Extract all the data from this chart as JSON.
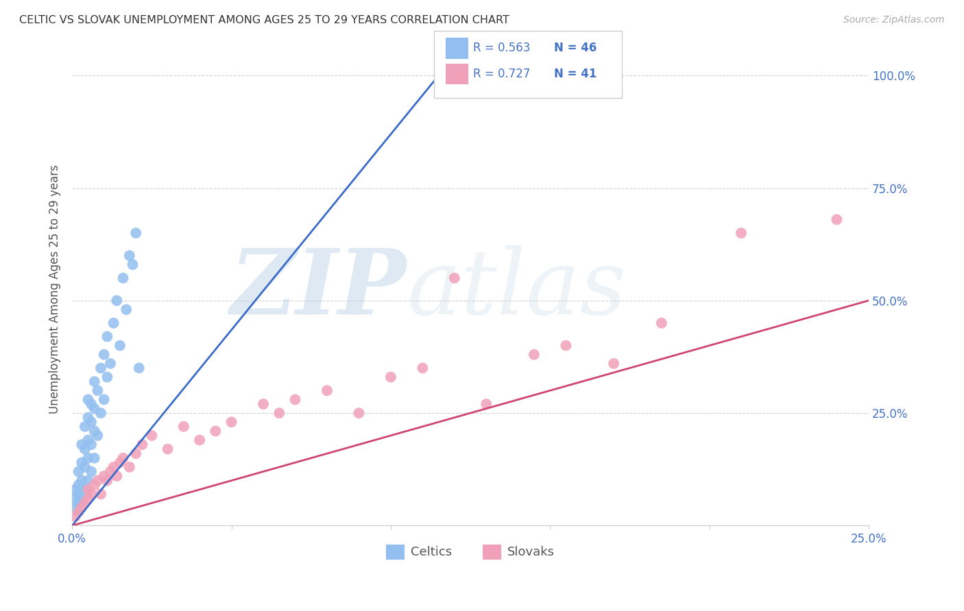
{
  "title": "CELTIC VS SLOVAK UNEMPLOYMENT AMONG AGES 25 TO 29 YEARS CORRELATION CHART",
  "source": "Source: ZipAtlas.com",
  "ylabel": "Unemployment Among Ages 25 to 29 years",
  "xlim": [
    0.0,
    0.25
  ],
  "ylim": [
    0.0,
    1.05
  ],
  "xticks": [
    0.0,
    0.05,
    0.1,
    0.15,
    0.2,
    0.25
  ],
  "xticklabels": [
    "0.0%",
    "",
    "",
    "",
    "",
    "25.0%"
  ],
  "yticks": [
    0.0,
    0.25,
    0.5,
    0.75,
    1.0
  ],
  "yticklabels": [
    "",
    "25.0%",
    "50.0%",
    "75.0%",
    "100.0%"
  ],
  "celtics_R": "0.563",
  "celtics_N": "46",
  "slovaks_R": "0.727",
  "slovaks_N": "41",
  "celtics_color": "#92bff0",
  "celtics_line_color": "#3b6bc9",
  "slovaks_color": "#f0a0b8",
  "slovaks_line_color": "#d04570",
  "legend_celtics_label": "Celtics",
  "legend_slovaks_label": "Slovaks",
  "watermark_zip": "ZIP",
  "watermark_atlas": "atlas",
  "background_color": "#ffffff",
  "grid_color": "#d0d0d0",
  "title_color": "#333333",
  "axis_label_color": "#555555",
  "tick_color": "#4472c4",
  "celtics_x": [
    0.001,
    0.001,
    0.001,
    0.002,
    0.002,
    0.002,
    0.002,
    0.003,
    0.003,
    0.003,
    0.003,
    0.004,
    0.004,
    0.004,
    0.004,
    0.005,
    0.005,
    0.005,
    0.005,
    0.005,
    0.006,
    0.006,
    0.006,
    0.006,
    0.007,
    0.007,
    0.007,
    0.007,
    0.008,
    0.008,
    0.009,
    0.009,
    0.01,
    0.01,
    0.011,
    0.011,
    0.012,
    0.013,
    0.014,
    0.015,
    0.016,
    0.017,
    0.018,
    0.019,
    0.02,
    0.021
  ],
  "celtics_y": [
    0.04,
    0.06,
    0.08,
    0.05,
    0.07,
    0.09,
    0.12,
    0.06,
    0.1,
    0.14,
    0.18,
    0.08,
    0.13,
    0.17,
    0.22,
    0.1,
    0.15,
    0.19,
    0.24,
    0.28,
    0.12,
    0.18,
    0.23,
    0.27,
    0.15,
    0.21,
    0.26,
    0.32,
    0.2,
    0.3,
    0.25,
    0.35,
    0.28,
    0.38,
    0.33,
    0.42,
    0.36,
    0.45,
    0.5,
    0.4,
    0.55,
    0.48,
    0.6,
    0.58,
    0.65,
    0.35
  ],
  "slovaks_x": [
    0.001,
    0.002,
    0.003,
    0.004,
    0.005,
    0.005,
    0.006,
    0.007,
    0.008,
    0.009,
    0.01,
    0.011,
    0.012,
    0.013,
    0.014,
    0.015,
    0.016,
    0.018,
    0.02,
    0.022,
    0.025,
    0.03,
    0.035,
    0.04,
    0.045,
    0.05,
    0.06,
    0.065,
    0.07,
    0.08,
    0.09,
    0.1,
    0.11,
    0.12,
    0.13,
    0.145,
    0.155,
    0.17,
    0.185,
    0.21,
    0.24
  ],
  "slovaks_y": [
    0.02,
    0.03,
    0.04,
    0.05,
    0.06,
    0.08,
    0.07,
    0.09,
    0.1,
    0.07,
    0.11,
    0.1,
    0.12,
    0.13,
    0.11,
    0.14,
    0.15,
    0.13,
    0.16,
    0.18,
    0.2,
    0.17,
    0.22,
    0.19,
    0.21,
    0.23,
    0.27,
    0.25,
    0.28,
    0.3,
    0.25,
    0.33,
    0.35,
    0.55,
    0.27,
    0.38,
    0.4,
    0.36,
    0.45,
    0.65,
    0.68
  ],
  "celtics_line_x": [
    0.0,
    0.115
  ],
  "celtics_line_y": [
    0.0,
    1.0
  ],
  "slovaks_line_x": [
    0.0,
    0.25
  ],
  "slovaks_line_y": [
    0.0,
    0.5
  ]
}
